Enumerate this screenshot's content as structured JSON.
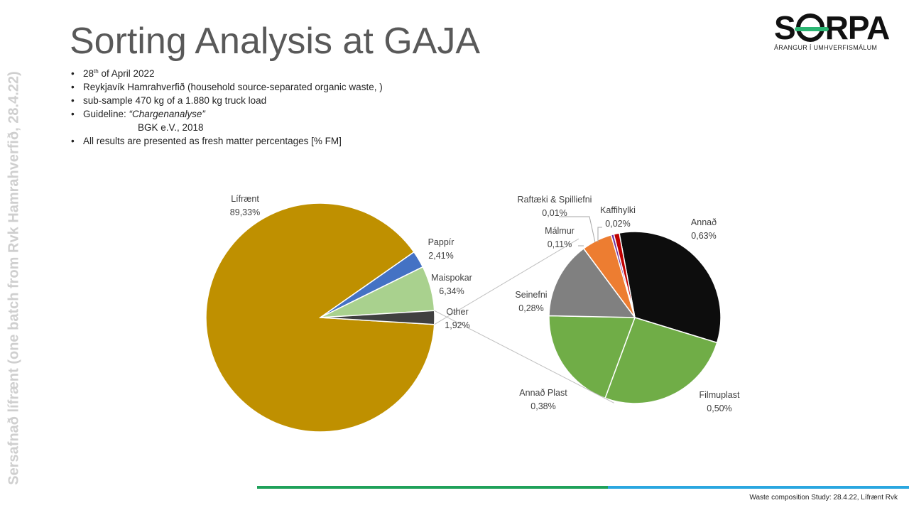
{
  "slide": {
    "side_text": "Sersafnað lífrænt (one batch from Rvk Hamrahverfið, 28.4.22)",
    "title": "Sorting Analysis at GAJA",
    "bullets": {
      "date_num": "28",
      "date_sup": "th",
      "date_rest": " of April 2022",
      "b2": "Reykjavík Hamrahverfið (household source-separated organic waste, )",
      "b3": "sub-sample 470 kg of a 1.880 kg truck load",
      "b4_prefix": "Guideline: ",
      "b4_italic": "“Chargenanalyse”",
      "b4_cont": "BGK e.V., 2018",
      "b5": "All results are presented as fresh matter percentages [% FM]"
    },
    "logo": {
      "brand_left": "S",
      "brand_right": "RPA",
      "tagline": "ÁRANGUR Í UMHVERFISMÁLUM"
    },
    "footer": "Waste composition Study: 28.4.22, Lífrænt Rvk",
    "colors": {
      "green_bar": "#1fa15a",
      "blue_bar": "#2aa7e0"
    }
  },
  "chart_data": {
    "type": "pie",
    "subtype": "pie-of-pie",
    "main": {
      "slices": [
        {
          "name": "Lífrænt",
          "value_label": "89,33%",
          "value": 89.33,
          "color": "#bf9000"
        },
        {
          "name": "Pappír",
          "value_label": "2,41%",
          "value": 2.41,
          "color": "#4472c4"
        },
        {
          "name": "Maispokar",
          "value_label": "6,34%",
          "value": 6.34,
          "color": "#a9d18e"
        },
        {
          "name": "Other",
          "value_label": "1,92%",
          "value": 1.92,
          "color": "#404040"
        }
      ]
    },
    "secondary": {
      "slices": [
        {
          "name": "Annað",
          "value_label": "0,63%",
          "value": 0.63,
          "color": "#0d0d0d"
        },
        {
          "name": "Filmuplast",
          "value_label": "0,50%",
          "value": 0.5,
          "color": "#70ad47"
        },
        {
          "name": "Annað Plast",
          "value_label": "0,38%",
          "value": 0.38,
          "color": "#70ad47"
        },
        {
          "name": "Seinefni",
          "value_label": "0,28%",
          "value": 0.28,
          "color": "#808080"
        },
        {
          "name": "Málmur",
          "value_label": "0,11%",
          "value": 0.11,
          "color": "#ed7d31"
        },
        {
          "name": "Raftæki & Spilliefni",
          "value_label": "0,01%",
          "value": 0.01,
          "color": "#7030a0"
        },
        {
          "name": "Kaffihylki",
          "value_label": "0,02%",
          "value": 0.02,
          "color": "#c00000"
        }
      ]
    }
  }
}
